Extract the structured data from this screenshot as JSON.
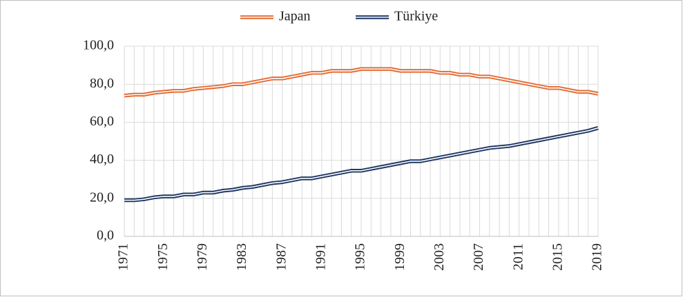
{
  "chart_data": {
    "type": "line",
    "categories": [
      "1971",
      null,
      null,
      null,
      "1975",
      null,
      null,
      null,
      "1979",
      null,
      null,
      null,
      "1983",
      null,
      null,
      null,
      "1987",
      null,
      null,
      null,
      "1991",
      null,
      null,
      null,
      "1995",
      null,
      null,
      null,
      "1999",
      null,
      null,
      null,
      "2003",
      null,
      null,
      null,
      "2007",
      null,
      null,
      null,
      "2011",
      null,
      null,
      null,
      "2015",
      null,
      null,
      null,
      "2019"
    ],
    "series": [
      {
        "name": "Japan",
        "color": "#e46c35",
        "values": [
          74,
          74.5,
          74.5,
          75.5,
          76,
          76.5,
          76.5,
          77.5,
          78,
          78.5,
          79,
          80,
          80,
          81,
          82,
          83,
          83,
          84,
          85,
          86,
          86,
          87,
          87,
          87,
          88,
          88,
          88,
          88,
          87,
          87,
          87,
          87,
          86,
          86,
          85,
          85,
          84,
          84,
          83,
          82,
          81,
          80,
          79,
          78,
          78,
          77,
          76,
          76,
          75
        ]
      },
      {
        "name": "Türkiye",
        "color": "#1f3864",
        "values": [
          19,
          19,
          19.5,
          20.5,
          21,
          21,
          22,
          22,
          23,
          23,
          24,
          24.5,
          25.5,
          26,
          27,
          28,
          28.5,
          29.5,
          30.5,
          30.5,
          31.5,
          32.5,
          33.5,
          34.5,
          34.5,
          35.5,
          36.5,
          37.5,
          38.5,
          39.5,
          39.5,
          40.5,
          41.5,
          42.5,
          43.5,
          44.5,
          45.5,
          46.5,
          47,
          47.5,
          48.5,
          49.5,
          50.5,
          51.5,
          52.5,
          53.5,
          54.5,
          55.5,
          57
        ]
      }
    ],
    "ylim": [
      0,
      100
    ],
    "yticks": [
      {
        "value": 0,
        "label": "0,0"
      },
      {
        "value": 20,
        "label": "20,0"
      },
      {
        "value": 40,
        "label": "40,0"
      },
      {
        "value": 60,
        "label": "60,0"
      },
      {
        "value": 80,
        "label": "80,0"
      },
      {
        "value": 100,
        "label": "100,0"
      }
    ],
    "grid": true,
    "legend": "top"
  }
}
